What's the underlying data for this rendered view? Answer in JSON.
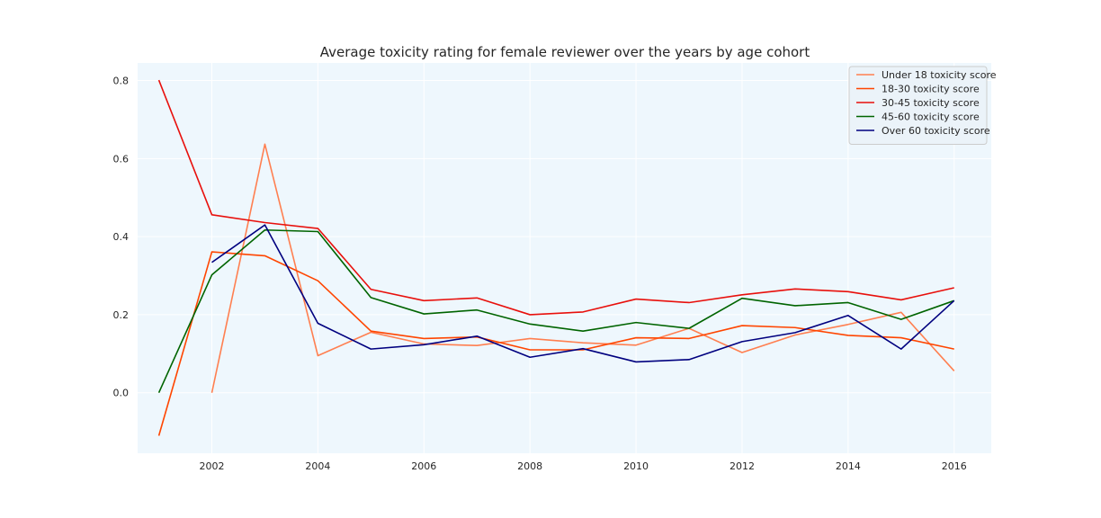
{
  "chart_data": {
    "type": "line",
    "title": "Average toxicity rating for female reviewer over the years by age cohort",
    "xlabel": "",
    "ylabel": "",
    "xlim": [
      2000.6,
      2016.7
    ],
    "ylim": [
      -0.155,
      0.845
    ],
    "x_ticks": [
      2002,
      2004,
      2006,
      2008,
      2010,
      2012,
      2014,
      2016
    ],
    "y_ticks": [
      0.0,
      0.2,
      0.4,
      0.6,
      0.8
    ],
    "y_tick_labels": [
      "0.0",
      "0.2",
      "0.4",
      "0.6",
      "0.8"
    ],
    "grid": true,
    "legend_position": "top-right",
    "plot_background": "#eef7fd",
    "series": [
      {
        "name": "Under 18 toxicity score",
        "color": "#ff7f50",
        "x": [
          2002,
          2003,
          2004,
          2005,
          2006,
          2007,
          2008,
          2009,
          2010,
          2011,
          2012,
          2013,
          2014,
          2015,
          2016
        ],
        "values": [
          0.0,
          0.637,
          0.095,
          0.155,
          0.125,
          0.121,
          0.139,
          0.128,
          0.122,
          0.165,
          0.103,
          0.148,
          0.175,
          0.206,
          0.056
        ]
      },
      {
        "name": "18-30 toxicity score",
        "color": "#ff4500",
        "x": [
          2001,
          2002,
          2003,
          2004,
          2005,
          2006,
          2007,
          2008,
          2009,
          2010,
          2011,
          2012,
          2013,
          2014,
          2015,
          2016
        ],
        "values": [
          -0.11,
          0.361,
          0.351,
          0.287,
          0.158,
          0.139,
          0.143,
          0.11,
          0.11,
          0.141,
          0.139,
          0.172,
          0.167,
          0.147,
          0.141,
          0.112
        ]
      },
      {
        "name": "30-45 toxicity score",
        "color": "#e8100c",
        "x": [
          2001,
          2002,
          2003,
          2004,
          2005,
          2006,
          2007,
          2008,
          2009,
          2010,
          2011,
          2012,
          2013,
          2014,
          2015,
          2016
        ],
        "values": [
          0.801,
          0.456,
          0.436,
          0.421,
          0.265,
          0.236,
          0.243,
          0.2,
          0.207,
          0.24,
          0.231,
          0.251,
          0.266,
          0.259,
          0.238,
          0.269
        ]
      },
      {
        "name": "45-60 toxicity score",
        "color": "#006400",
        "x": [
          2001,
          2002,
          2003,
          2004,
          2005,
          2006,
          2007,
          2008,
          2009,
          2010,
          2011,
          2012,
          2013,
          2014,
          2015,
          2016
        ],
        "values": [
          0.0,
          0.302,
          0.417,
          0.413,
          0.244,
          0.202,
          0.212,
          0.176,
          0.158,
          0.18,
          0.165,
          0.242,
          0.223,
          0.231,
          0.188,
          0.236
        ]
      },
      {
        "name": "Over 60 toxicity score",
        "color": "#00007f",
        "x": [
          2002,
          2003,
          2004,
          2005,
          2006,
          2007,
          2008,
          2009,
          2010,
          2011,
          2012,
          2013,
          2014,
          2015,
          2016
        ],
        "values": [
          0.334,
          0.43,
          0.178,
          0.112,
          0.123,
          0.145,
          0.091,
          0.113,
          0.079,
          0.085,
          0.131,
          0.154,
          0.198,
          0.112,
          0.236
        ]
      }
    ]
  }
}
